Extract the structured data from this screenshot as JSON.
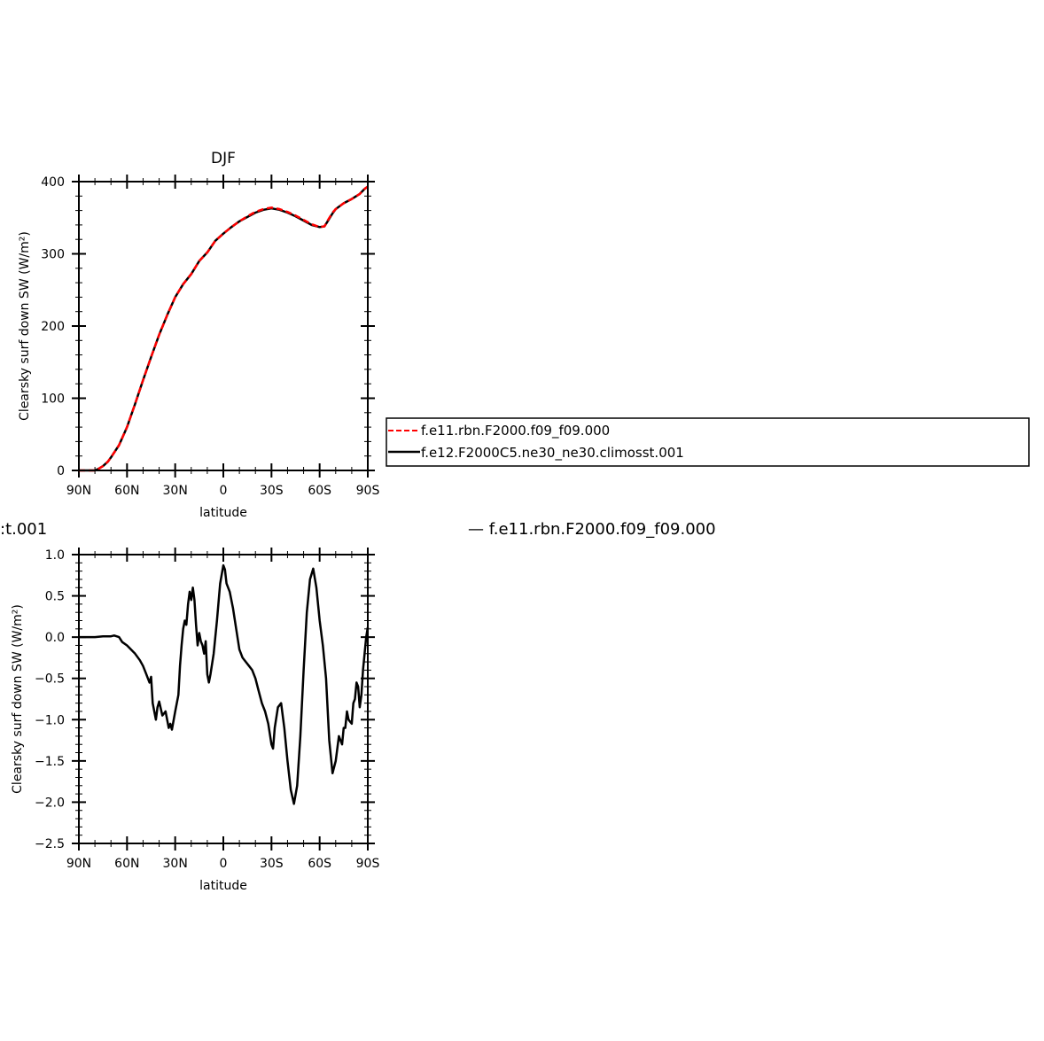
{
  "chart_data": [
    {
      "type": "line",
      "title": "DJF",
      "xlabel": "latitude",
      "ylabel": "Clearsky surf down SW (W/m²)",
      "xlim": [
        90,
        -90
      ],
      "ylim": [
        0,
        400
      ],
      "x_tick_values": [
        90,
        60,
        30,
        0,
        -30,
        -60,
        -90
      ],
      "x_tick_labels": [
        "90N",
        "60N",
        "30N",
        "0",
        "30S",
        "60S",
        "90S"
      ],
      "y_tick_values": [
        0,
        100,
        200,
        300,
        400
      ],
      "y_tick_labels": [
        "0",
        "100",
        "200",
        "300",
        "400"
      ],
      "legend_position": "right, outside plot",
      "series": [
        {
          "name": "f.e11.rbn.F2000.f09_f09.000",
          "color": "#ff0000",
          "dash": "dashed",
          "x": [
            90,
            85,
            82,
            80,
            78,
            75,
            72,
            70,
            65,
            60,
            55,
            50,
            45,
            40,
            35,
            30,
            25,
            20,
            15,
            10,
            5,
            0,
            -5,
            -10,
            -15,
            -20,
            -25,
            -30,
            -35,
            -40,
            -45,
            -50,
            -55,
            -60,
            -63,
            -65,
            -68,
            -70,
            -75,
            -80,
            -85,
            -88,
            -90
          ],
          "y": [
            0,
            0,
            0,
            0,
            2,
            6,
            12,
            18,
            35,
            60,
            92,
            125,
            157,
            188,
            215,
            240,
            258,
            272,
            290,
            302,
            318,
            328,
            337,
            345,
            352,
            358,
            362,
            364,
            362,
            358,
            353,
            347,
            341,
            337,
            338,
            346,
            357,
            362,
            370,
            376,
            383,
            390,
            393
          ]
        },
        {
          "name": "f.e12.F2000C5.ne30_ne30.climosst.001",
          "color": "#000000",
          "dash": "solid",
          "x": [
            90,
            85,
            82,
            80,
            78,
            75,
            72,
            70,
            65,
            60,
            55,
            50,
            45,
            40,
            35,
            30,
            25,
            20,
            15,
            10,
            5,
            0,
            -5,
            -10,
            -15,
            -20,
            -25,
            -30,
            -35,
            -40,
            -45,
            -50,
            -55,
            -60,
            -63,
            -65,
            -68,
            -70,
            -75,
            -80,
            -85,
            -88,
            -90
          ],
          "y": [
            0,
            0,
            0,
            0,
            2,
            6,
            12,
            18,
            35,
            60,
            92,
            125,
            157,
            188,
            215,
            240,
            258,
            272,
            290,
            302,
            318,
            328,
            337,
            345,
            351,
            357,
            361,
            363,
            361,
            357,
            352,
            346,
            340,
            337,
            338,
            345,
            356,
            362,
            370,
            376,
            383,
            390,
            393
          ]
        }
      ]
    },
    {
      "type": "line",
      "title": "",
      "partial_title_visible": ":t.001",
      "partial_legend_visible": "— f.e11.rbn.F2000.f09_f09.000",
      "xlabel": "latitude",
      "ylabel": "Clearsky surf down SW (W/m²)",
      "xlim": [
        90,
        -90
      ],
      "ylim": [
        -2.5,
        1.0
      ],
      "x_tick_values": [
        90,
        60,
        30,
        0,
        -30,
        -60,
        -90
      ],
      "x_tick_labels": [
        "90N",
        "60N",
        "30N",
        "0",
        "30S",
        "60S",
        "90S"
      ],
      "y_tick_values": [
        1.0,
        0.5,
        0.0,
        -0.5,
        -1.0,
        -1.5,
        -2.0,
        -2.5
      ],
      "y_tick_labels": [
        "1.0",
        "0.5",
        "0.0",
        "−0.5",
        "−1.0",
        "−1.5",
        "−2.0",
        "−2.5"
      ],
      "series": [
        {
          "color": "#000000",
          "dash": "solid",
          "x": [
            90,
            85,
            80,
            75,
            70,
            68,
            65,
            63,
            60,
            55,
            52,
            50,
            48,
            46,
            45,
            44,
            42,
            41,
            40,
            38,
            36,
            34,
            33,
            32,
            30,
            28,
            27,
            26,
            25,
            24,
            23,
            22,
            21,
            20,
            19,
            18,
            17,
            16,
            15,
            14,
            13,
            12,
            11,
            10,
            9,
            8,
            6,
            4,
            2,
            0,
            -1,
            -2,
            -4,
            -6,
            -8,
            -10,
            -12,
            -14,
            -16,
            -18,
            -20,
            -22,
            -24,
            -26,
            -28,
            -30,
            -31,
            -32,
            -34,
            -36,
            -38,
            -40,
            -42,
            -44,
            -46,
            -48,
            -50,
            -52,
            -54,
            -56,
            -58,
            -60,
            -62,
            -64,
            -66,
            -68,
            -70,
            -72,
            -74,
            -75,
            -76,
            -77,
            -78,
            -80,
            -81,
            -82,
            -83,
            -84,
            -85,
            -86,
            -87,
            -88,
            -89,
            -90
          ],
          "y": [
            0,
            0,
            0,
            0.01,
            0.01,
            0.02,
            0.0,
            -0.06,
            -0.1,
            -0.2,
            -0.28,
            -0.35,
            -0.45,
            -0.55,
            -0.48,
            -0.8,
            -1.0,
            -0.85,
            -0.78,
            -0.95,
            -0.9,
            -1.1,
            -1.05,
            -1.12,
            -0.9,
            -0.7,
            -0.35,
            -0.1,
            0.1,
            0.2,
            0.15,
            0.4,
            0.55,
            0.45,
            0.6,
            0.45,
            0.15,
            -0.1,
            0.05,
            -0.05,
            -0.1,
            -0.2,
            -0.05,
            -0.45,
            -0.55,
            -0.45,
            -0.2,
            0.2,
            0.65,
            0.87,
            0.82,
            0.65,
            0.55,
            0.35,
            0.1,
            -0.15,
            -0.25,
            -0.3,
            -0.35,
            -0.4,
            -0.5,
            -0.65,
            -0.8,
            -0.9,
            -1.05,
            -1.3,
            -1.35,
            -1.1,
            -0.85,
            -0.8,
            -1.1,
            -1.5,
            -1.85,
            -2.02,
            -1.8,
            -1.2,
            -0.4,
            0.3,
            0.7,
            0.83,
            0.6,
            0.2,
            -0.1,
            -0.5,
            -1.25,
            -1.65,
            -1.5,
            -1.2,
            -1.3,
            -1.1,
            -1.1,
            -0.9,
            -1.0,
            -1.05,
            -0.8,
            -0.75,
            -0.55,
            -0.6,
            -0.85,
            -0.7,
            -0.4,
            -0.2,
            0.0,
            0.12
          ]
        }
      ]
    }
  ]
}
